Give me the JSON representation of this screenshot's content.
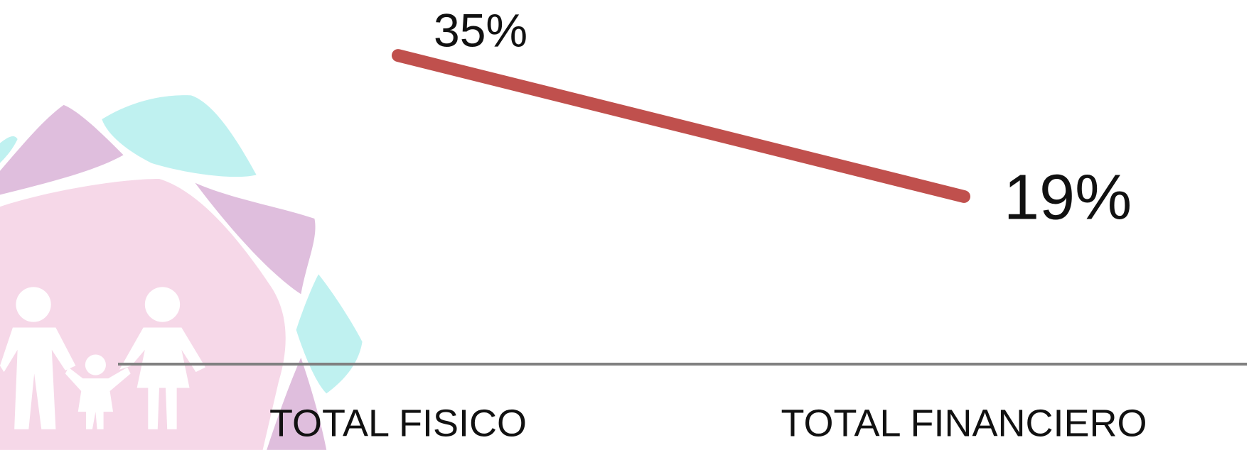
{
  "chart_data": {
    "type": "line",
    "categories": [
      "TOTAL FISICO",
      "TOTAL FINANCIERO"
    ],
    "values": [
      35,
      19
    ],
    "value_labels": [
      "35%",
      "19%"
    ],
    "color": "#c0504d",
    "ylim": [
      0,
      40
    ]
  }
}
